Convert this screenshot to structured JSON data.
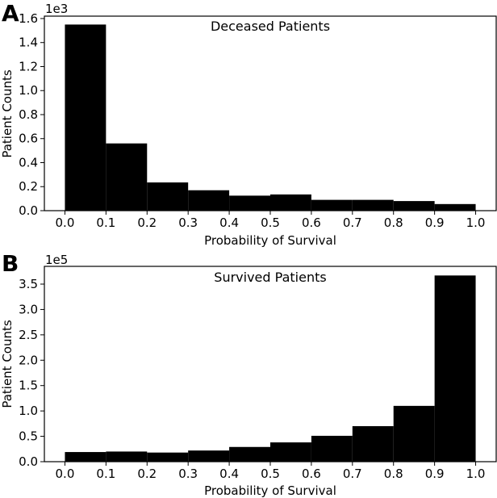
{
  "chart_data": [
    {
      "panel": "A",
      "type": "bar",
      "title": "Deceased Patients",
      "xlabel": "Probability of Survival",
      "ylabel": "Patient Counts",
      "multiplier_label": "1e3",
      "bin_edges": [
        0.0,
        0.1,
        0.2,
        0.3,
        0.4,
        0.5,
        0.6,
        0.7,
        0.8,
        0.9,
        1.0
      ],
      "values": [
        1.55,
        0.56,
        0.235,
        0.17,
        0.125,
        0.135,
        0.09,
        0.09,
        0.08,
        0.055
      ],
      "xlim": [
        -0.05,
        1.05
      ],
      "ylim": [
        0,
        1.62
      ],
      "xticks": [
        0.0,
        0.1,
        0.2,
        0.3,
        0.4,
        0.5,
        0.6,
        0.7,
        0.8,
        0.9,
        1.0
      ],
      "xtick_labels": [
        "0.0",
        "0.1",
        "0.2",
        "0.3",
        "0.4",
        "0.5",
        "0.6",
        "0.7",
        "0.8",
        "0.9",
        "1.0"
      ],
      "yticks": [
        0.0,
        0.2,
        0.4,
        0.6,
        0.8,
        1.0,
        1.2,
        1.4,
        1.6
      ],
      "ytick_labels": [
        "0.0",
        "0.2",
        "0.4",
        "0.6",
        "0.8",
        "1.0",
        "1.2",
        "1.4",
        "1.6"
      ],
      "color": "#000000"
    },
    {
      "panel": "B",
      "type": "bar",
      "title": "Survived Patients",
      "xlabel": "Probability of Survival",
      "ylabel": "Patient Counts",
      "multiplier_label": "1e5",
      "bin_edges": [
        0.0,
        0.1,
        0.2,
        0.3,
        0.4,
        0.5,
        0.6,
        0.7,
        0.8,
        0.9,
        1.0
      ],
      "values": [
        0.19,
        0.2,
        0.18,
        0.22,
        0.29,
        0.38,
        0.51,
        0.7,
        1.1,
        3.67
      ],
      "xlim": [
        -0.05,
        1.05
      ],
      "ylim": [
        0,
        3.85
      ],
      "xticks": [
        0.0,
        0.1,
        0.2,
        0.3,
        0.4,
        0.5,
        0.6,
        0.7,
        0.8,
        0.9,
        1.0
      ],
      "xtick_labels": [
        "0.0",
        "0.1",
        "0.2",
        "0.3",
        "0.4",
        "0.5",
        "0.6",
        "0.7",
        "0.8",
        "0.9",
        "1.0"
      ],
      "yticks": [
        0.0,
        0.5,
        1.0,
        1.5,
        2.0,
        2.5,
        3.0,
        3.5
      ],
      "ytick_labels": [
        "0.0",
        "0.5",
        "1.0",
        "1.5",
        "2.0",
        "2.5",
        "3.0",
        "3.5"
      ],
      "color": "#000000"
    }
  ]
}
